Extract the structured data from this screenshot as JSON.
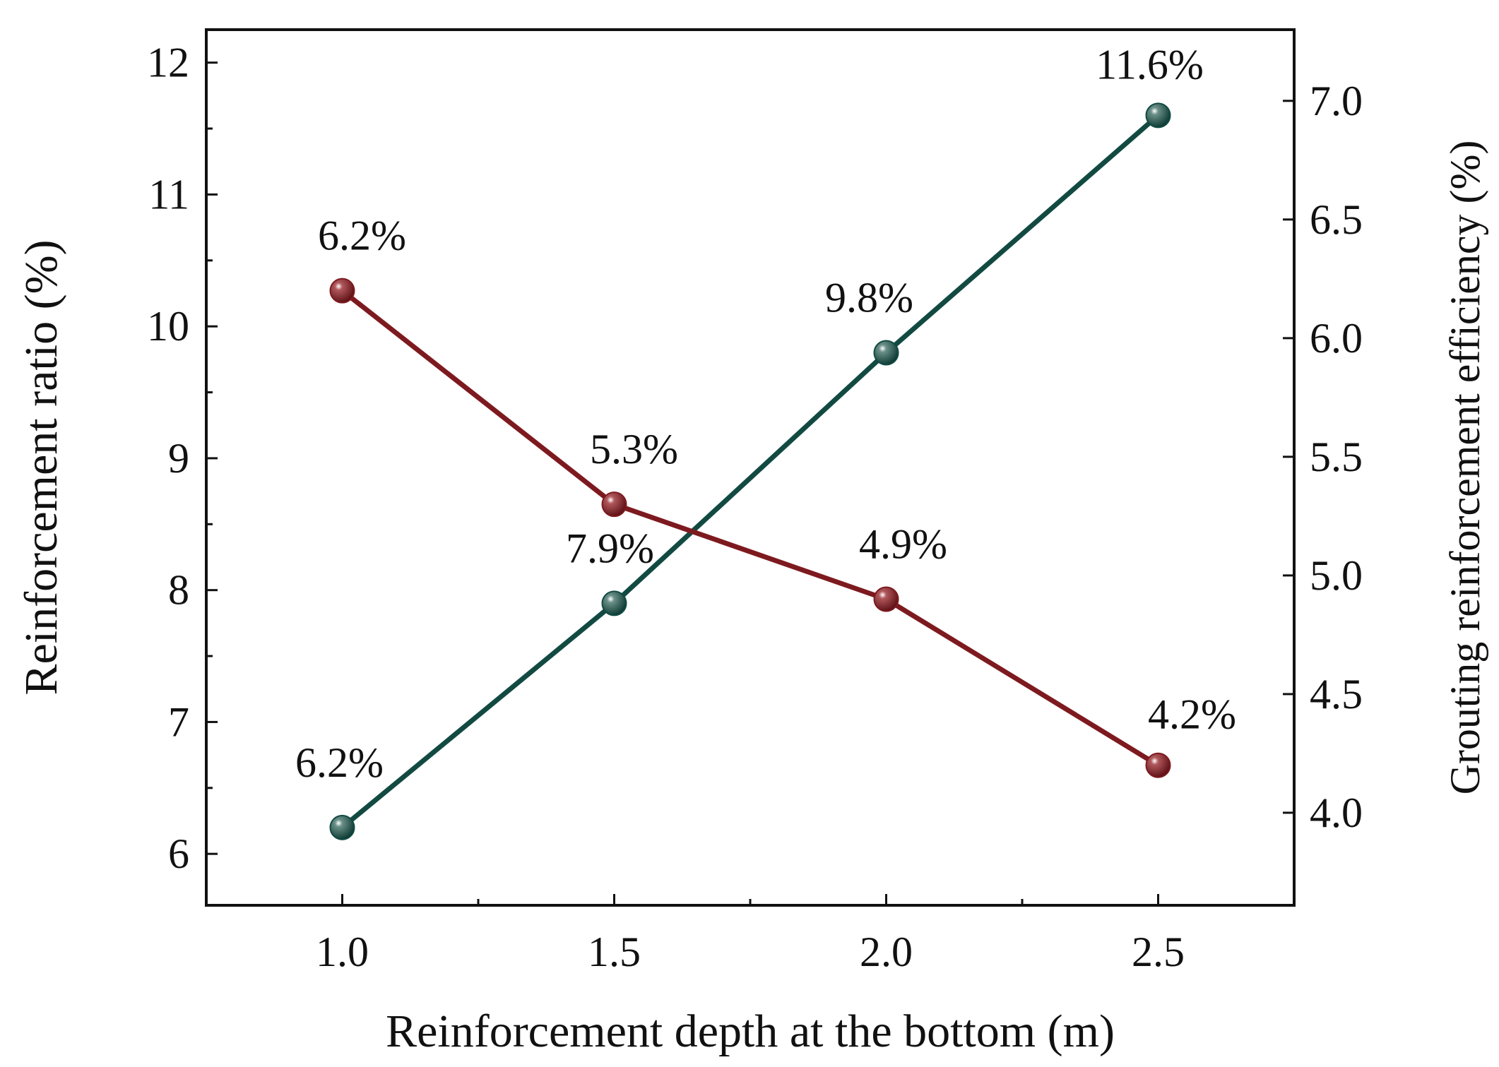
{
  "chart_data": {
    "type": "line",
    "title": "",
    "xlabel": "Reinforcement depth at the bottom (m)",
    "ylabel": "Reinforcement ratio (%)",
    "y2label": "Grouting reinforcement efficiency (%)",
    "x": [
      1.0,
      1.5,
      2.0,
      2.5
    ],
    "x_tick_labels": [
      "1.0",
      "1.5",
      "2.0",
      "2.5"
    ],
    "xlim": [
      0.75,
      2.75
    ],
    "ylim": [
      5.61,
      12.25
    ],
    "y2lim": [
      3.61,
      7.3
    ],
    "y_ticks": [
      6,
      7,
      8,
      9,
      10,
      11,
      12
    ],
    "y_tick_labels": [
      "6",
      "7",
      "8",
      "9",
      "10",
      "11",
      "12"
    ],
    "y2_ticks": [
      4.0,
      4.5,
      5.0,
      5.5,
      6.0,
      6.5,
      7.0
    ],
    "y2_tick_labels": [
      "4.0",
      "4.5",
      "5.0",
      "5.5",
      "6.0",
      "6.5",
      "7.0"
    ],
    "grid": false,
    "series": [
      {
        "name": "Reinforcement ratio",
        "axis": "left",
        "color": "#124a42",
        "values": [
          6.2,
          7.9,
          9.8,
          11.6
        ],
        "labels": [
          "6.2%",
          "7.9%",
          "9.8%",
          "11.6%"
        ]
      },
      {
        "name": "Grouting reinforcement efficiency",
        "axis": "right",
        "color": "#7d1a1f",
        "values": [
          6.2,
          5.3,
          4.9,
          4.2
        ],
        "labels": [
          "6.2%",
          "5.3%",
          "4.9%",
          "4.2%"
        ]
      }
    ]
  }
}
